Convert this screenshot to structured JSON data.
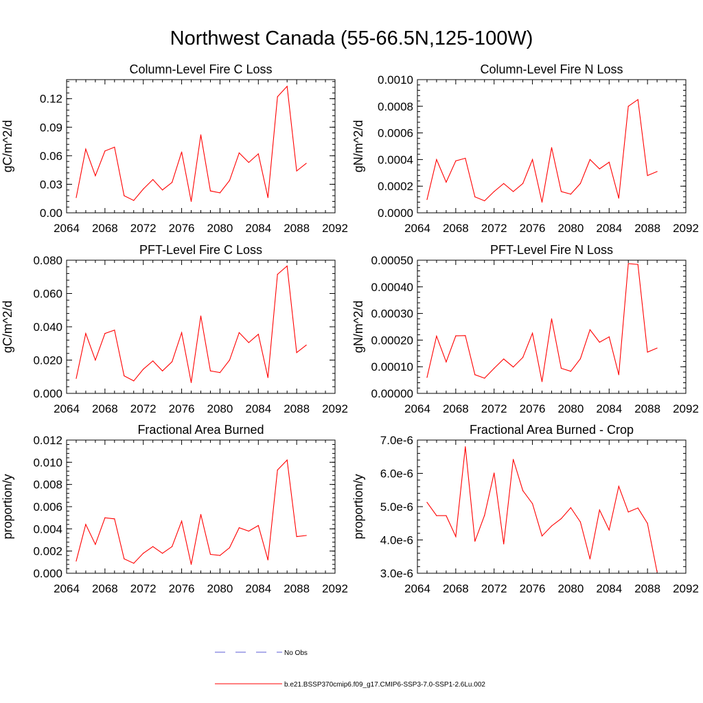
{
  "main_title": "Northwest Canada (55-66.5N,125-100W)",
  "colors": {
    "series": "#ff0000",
    "no_obs": "#5b5bd6",
    "axis": "#000000"
  },
  "legend": {
    "no_obs_label": "No Obs",
    "series_label": "b.e21.BSSP370cmip6.f09_g17.CMIP6-SSP3-7.0-SSP1-2.6Lu.002"
  },
  "chart_data": [
    {
      "type": "line",
      "title": "Column-Level Fire C Loss",
      "ylabel": "gC/m^2/d",
      "xlim": [
        2064,
        2092
      ],
      "xticks": [
        "2064",
        "2068",
        "2072",
        "2076",
        "2080",
        "2084",
        "2088",
        "2092"
      ],
      "ylim": [
        0,
        0.14
      ],
      "yticks": [
        "0.00",
        "0.03",
        "0.06",
        "0.09",
        "0.12"
      ],
      "ytick_values": [
        0,
        0.03,
        0.06,
        0.09,
        0.12
      ],
      "x": [
        2065,
        2066,
        2067,
        2068,
        2069,
        2070,
        2071,
        2072,
        2073,
        2074,
        2075,
        2076,
        2077,
        2078,
        2079,
        2080,
        2081,
        2082,
        2083,
        2084,
        2085,
        2086,
        2087,
        2088,
        2089
      ],
      "series": [
        {
          "values": [
            0.016,
            0.067,
            0.039,
            0.065,
            0.069,
            0.018,
            0.013,
            0.025,
            0.035,
            0.024,
            0.032,
            0.064,
            0.012,
            0.082,
            0.023,
            0.021,
            0.034,
            0.063,
            0.053,
            0.062,
            0.016,
            0.122,
            0.133,
            0.044,
            0.052
          ]
        }
      ]
    },
    {
      "type": "line",
      "title": "Column-Level Fire N Loss",
      "ylabel": "gN/m^2/d",
      "xlim": [
        2064,
        2092
      ],
      "xticks": [
        "2064",
        "2068",
        "2072",
        "2076",
        "2080",
        "2084",
        "2088",
        "2092"
      ],
      "ylim": [
        0,
        0.001
      ],
      "yticks": [
        "0.0000",
        "0.0002",
        "0.0004",
        "0.0006",
        "0.0008",
        "0.0010"
      ],
      "ytick_values": [
        0,
        0.0002,
        0.0004,
        0.0006,
        0.0008,
        0.001
      ],
      "x": [
        2065,
        2066,
        2067,
        2068,
        2069,
        2070,
        2071,
        2072,
        2073,
        2074,
        2075,
        2076,
        2077,
        2078,
        2079,
        2080,
        2081,
        2082,
        2083,
        2084,
        2085,
        2086,
        2087,
        2088,
        2089
      ],
      "series": [
        {
          "values": [
            0.0001,
            0.0004,
            0.00023,
            0.00039,
            0.00041,
            0.00012,
            9e-05,
            0.00016,
            0.00022,
            0.00016,
            0.00022,
            0.0004,
            8e-05,
            0.00049,
            0.00016,
            0.00014,
            0.00022,
            0.0004,
            0.00033,
            0.00038,
            0.00011,
            0.0008,
            0.00085,
            0.00028,
            0.00031
          ]
        }
      ]
    },
    {
      "type": "line",
      "title": "PFT-Level Fire C Loss",
      "ylabel": "gC/m^2/d",
      "xlim": [
        2064,
        2092
      ],
      "xticks": [
        "2064",
        "2068",
        "2072",
        "2076",
        "2080",
        "2084",
        "2088",
        "2092"
      ],
      "ylim": [
        0,
        0.08
      ],
      "yticks": [
        "0.000",
        "0.020",
        "0.040",
        "0.060",
        "0.080"
      ],
      "ytick_values": [
        0,
        0.02,
        0.04,
        0.06,
        0.08
      ],
      "x": [
        2065,
        2066,
        2067,
        2068,
        2069,
        2070,
        2071,
        2072,
        2073,
        2074,
        2075,
        2076,
        2077,
        2078,
        2079,
        2080,
        2081,
        2082,
        2083,
        2084,
        2085,
        2086,
        2087,
        2088,
        2089
      ],
      "series": [
        {
          "values": [
            0.009,
            0.036,
            0.02,
            0.036,
            0.038,
            0.0105,
            0.0075,
            0.0145,
            0.0195,
            0.0135,
            0.019,
            0.0365,
            0.0065,
            0.0465,
            0.0135,
            0.0125,
            0.02,
            0.0365,
            0.0305,
            0.0355,
            0.0095,
            0.0715,
            0.0765,
            0.0245,
            0.029
          ]
        }
      ]
    },
    {
      "type": "line",
      "title": "PFT-Level Fire N Loss",
      "ylabel": "gN/m^2/d",
      "xlim": [
        2064,
        2092
      ],
      "xticks": [
        "2064",
        "2068",
        "2072",
        "2076",
        "2080",
        "2084",
        "2088",
        "2092"
      ],
      "ylim": [
        0,
        0.0005
      ],
      "yticks": [
        "0.00000",
        "0.00010",
        "0.00020",
        "0.00030",
        "0.00040",
        "0.00050"
      ],
      "ytick_values": [
        0,
        0.0001,
        0.0002,
        0.0003,
        0.0004,
        0.0005
      ],
      "x": [
        2065,
        2066,
        2067,
        2068,
        2069,
        2070,
        2071,
        2072,
        2073,
        2074,
        2075,
        2076,
        2077,
        2078,
        2079,
        2080,
        2081,
        2082,
        2083,
        2084,
        2085,
        2086,
        2087,
        2088,
        2089
      ],
      "series": [
        {
          "values": [
            6e-05,
            0.000215,
            0.000118,
            0.000216,
            0.000217,
            7e-05,
            5.7e-05,
            9.4e-05,
            0.000129,
            9.9e-05,
            0.000135,
            0.000226,
            4.4e-05,
            0.00028,
            9.4e-05,
            8.3e-05,
            0.00013,
            0.000239,
            0.000192,
            0.000212,
            7e-05,
            0.000487,
            0.000484,
            0.000155,
            0.00017
          ]
        }
      ]
    },
    {
      "type": "line",
      "title": "Fractional Area Burned",
      "ylabel": "proportion/y",
      "xlim": [
        2064,
        2092
      ],
      "xticks": [
        "2064",
        "2068",
        "2072",
        "2076",
        "2080",
        "2084",
        "2088",
        "2092"
      ],
      "ylim": [
        0,
        0.012
      ],
      "yticks": [
        "0.000",
        "0.002",
        "0.004",
        "0.006",
        "0.008",
        "0.010",
        "0.012"
      ],
      "ytick_values": [
        0,
        0.002,
        0.004,
        0.006,
        0.008,
        0.01,
        0.012
      ],
      "x": [
        2065,
        2066,
        2067,
        2068,
        2069,
        2070,
        2071,
        2072,
        2073,
        2074,
        2075,
        2076,
        2077,
        2078,
        2079,
        2080,
        2081,
        2082,
        2083,
        2084,
        2085,
        2086,
        2087,
        2088,
        2089
      ],
      "series": [
        {
          "values": [
            0.0011,
            0.0044,
            0.0026,
            0.005,
            0.0049,
            0.0013,
            0.0009,
            0.0018,
            0.0024,
            0.0018,
            0.0024,
            0.0047,
            0.0008,
            0.0053,
            0.0017,
            0.0016,
            0.0023,
            0.0041,
            0.0038,
            0.0043,
            0.0012,
            0.0093,
            0.0102,
            0.0033,
            0.0034
          ]
        }
      ]
    },
    {
      "type": "line",
      "title": "Fractional Area Burned - Crop",
      "ylabel": "proportion/y",
      "xlim": [
        2064,
        2092
      ],
      "xticks": [
        "2064",
        "2068",
        "2072",
        "2076",
        "2080",
        "2084",
        "2088",
        "2092"
      ],
      "ylim": [
        3e-06,
        7e-06
      ],
      "yticks": [
        "3.0e-6",
        "4.0e-6",
        "5.0e-6",
        "6.0e-6",
        "7.0e-6"
      ],
      "ytick_values": [
        3e-06,
        4e-06,
        5e-06,
        6e-06,
        7e-06
      ],
      "x": [
        2065,
        2066,
        2067,
        2068,
        2069,
        2070,
        2071,
        2072,
        2073,
        2074,
        2075,
        2076,
        2077,
        2078,
        2079,
        2080,
        2081,
        2082,
        2083,
        2084,
        2085,
        2086,
        2087,
        2088,
        2089
      ],
      "series": [
        {
          "values": [
            5.13e-06,
            4.73e-06,
            4.73e-06,
            4.1e-06,
            6.8e-06,
            3.96e-06,
            4.74e-06,
            6.01e-06,
            3.88e-06,
            6.42e-06,
            5.48e-06,
            5.09e-06,
            4.12e-06,
            4.42e-06,
            4.64e-06,
            4.97e-06,
            4.54e-06,
            3.43e-06,
            4.9e-06,
            4.3e-06,
            5.61e-06,
            4.84e-06,
            4.96e-06,
            4.5e-06,
            3.04e-06
          ]
        }
      ]
    }
  ]
}
